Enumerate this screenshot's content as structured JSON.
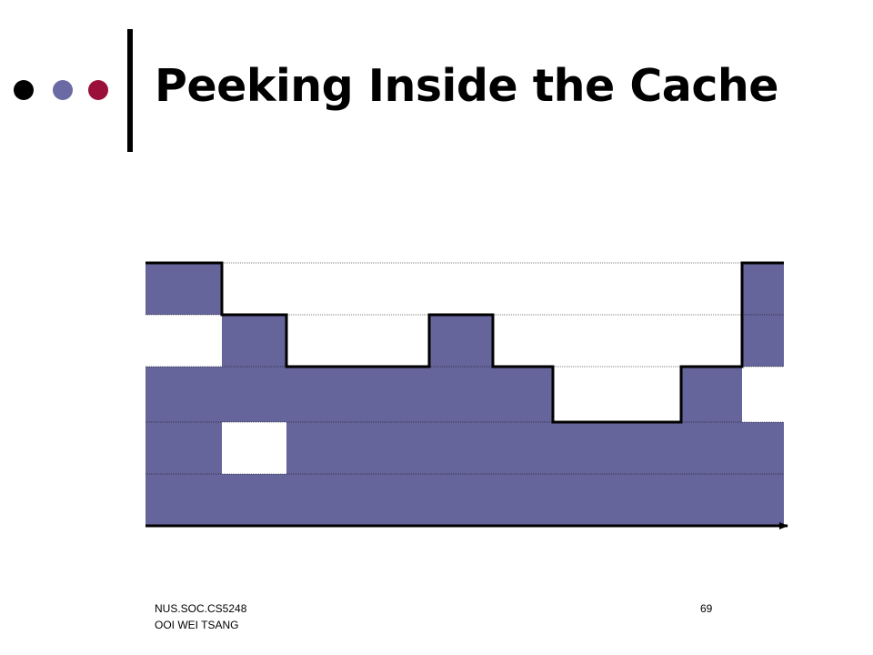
{
  "title": "Peeking Inside the Cache",
  "footer": {
    "line1": "NUS.SOC.CS5248",
    "line2": "OOI WEI TSANG",
    "page_number": "69"
  },
  "colors": {
    "fill": "#66659b",
    "bullet_dark": "#000000",
    "bullet_mid": "#6c6aa4",
    "bullet_accent": "#9b0f3b",
    "empty": "#ffffff"
  },
  "bullets": [
    "bullet_dark",
    "bullet_mid",
    "bullet_accent"
  ],
  "grid": {
    "columns": 10,
    "rows": 5,
    "cells": [
      [
        1,
        0,
        0,
        0,
        0,
        0,
        0,
        0,
        0,
        1
      ],
      [
        0,
        1,
        0,
        0,
        1,
        0,
        0,
        0,
        0,
        1
      ],
      [
        1,
        1,
        1,
        1,
        1,
        1,
        0,
        0,
        1,
        0
      ],
      [
        1,
        0,
        1,
        1,
        1,
        1,
        1,
        1,
        1,
        1
      ],
      [
        1,
        1,
        1,
        1,
        1,
        1,
        1,
        1,
        1,
        1
      ]
    ],
    "level_line": [
      0,
      1,
      2,
      2,
      1,
      2,
      3,
      3,
      2,
      0
    ]
  }
}
